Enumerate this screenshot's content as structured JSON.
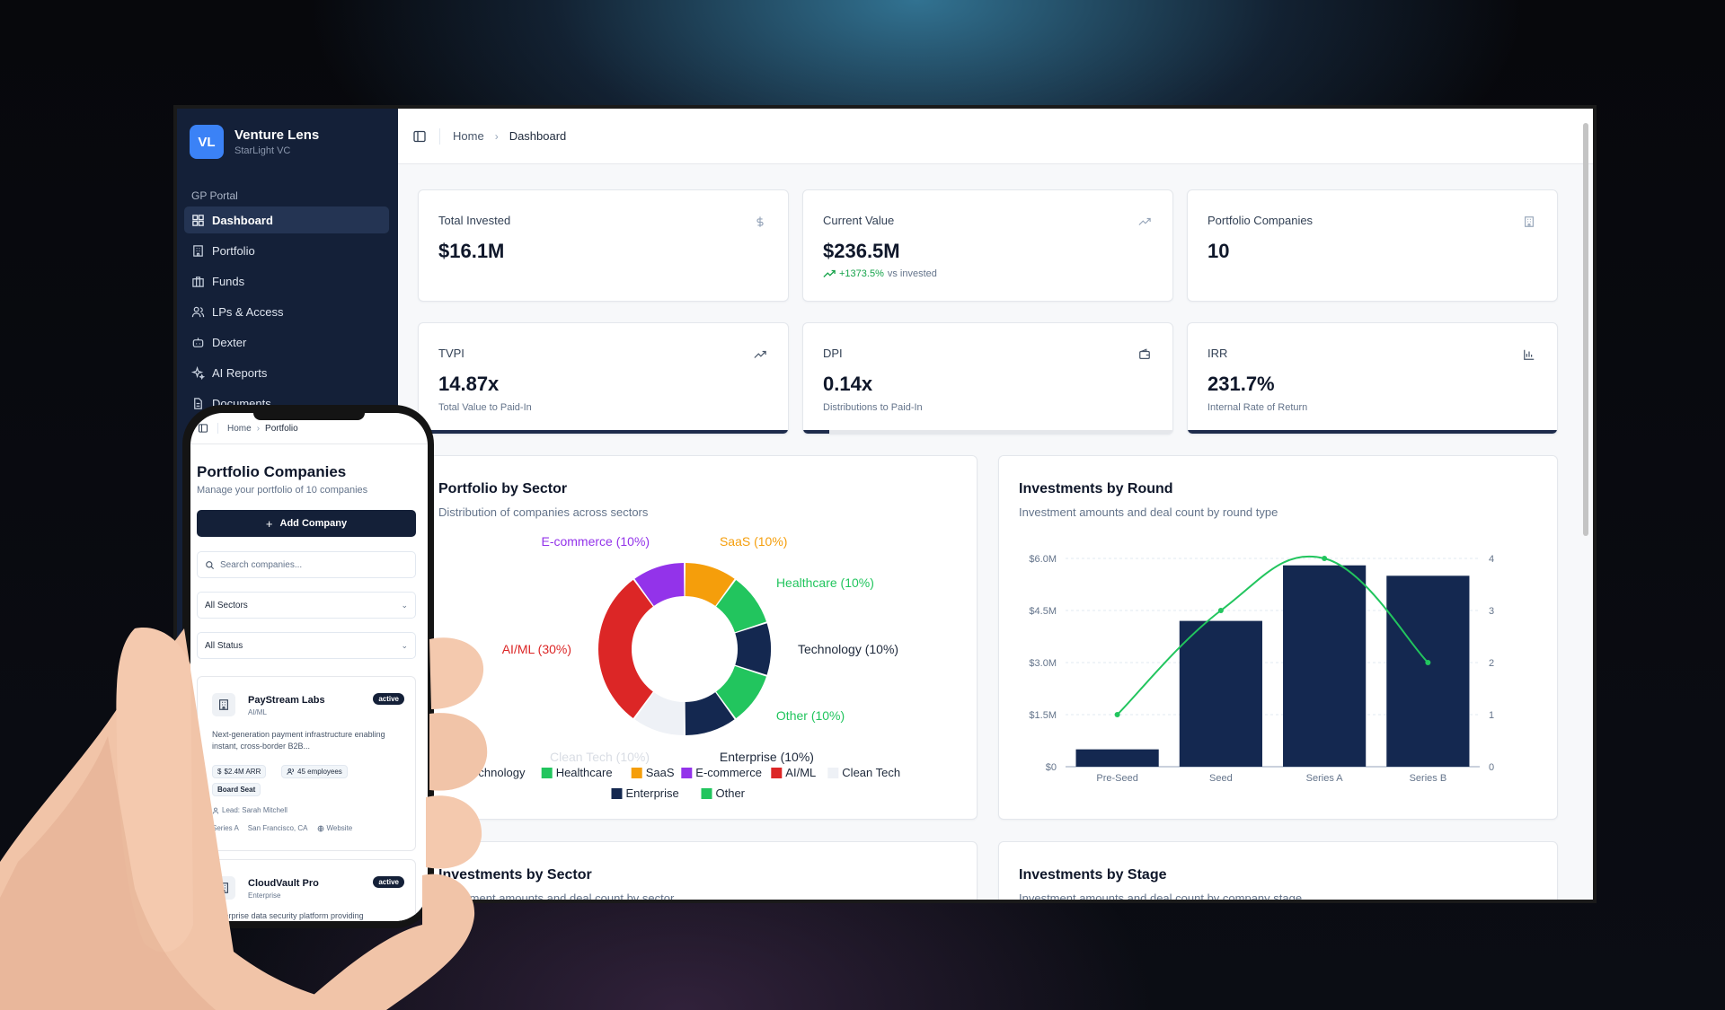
{
  "app": {
    "logo_initials": "VL",
    "name": "Venture Lens",
    "org": "StarLight VC"
  },
  "sidebar": {
    "section_label": "GP Portal",
    "items": [
      {
        "label": "Dashboard",
        "icon": "grid-icon",
        "active": true
      },
      {
        "label": "Portfolio",
        "icon": "building-icon"
      },
      {
        "label": "Funds",
        "icon": "briefcase-icon"
      },
      {
        "label": "LPs & Access",
        "icon": "users-icon"
      },
      {
        "label": "Dexter",
        "icon": "bot-icon"
      },
      {
        "label": "AI Reports",
        "icon": "sparkles-icon"
      },
      {
        "label": "Documents",
        "icon": "file-icon"
      }
    ]
  },
  "breadcrumb": {
    "home": "Home",
    "current": "Dashboard"
  },
  "kpis": [
    {
      "label": "Total Invested",
      "value": "$16.1M",
      "icon": "dollar-icon"
    },
    {
      "label": "Current Value",
      "value": "$236.5M",
      "delta": "+1373.5%",
      "delta_suffix": "vs invested",
      "icon": "trending-up-icon"
    },
    {
      "label": "Portfolio Companies",
      "value": "10",
      "icon": "building-icon"
    },
    {
      "label": "TVPI",
      "value": "14.87x",
      "sub": "Total Value to Paid-In",
      "icon": "trending-up-icon",
      "progress": 1.0
    },
    {
      "label": "DPI",
      "value": "0.14x",
      "sub": "Distributions to Paid-In",
      "icon": "wallet-icon",
      "progress": 0.07
    },
    {
      "label": "IRR",
      "value": "231.7%",
      "sub": "Internal Rate of Return",
      "icon": "bar-chart-icon",
      "progress": 1.0
    }
  ],
  "panels": {
    "sector": {
      "title": "Portfolio by Sector",
      "subtitle": "Distribution of companies across sectors"
    },
    "round": {
      "title": "Investments by Round",
      "subtitle": "Investment amounts and deal count by round type"
    },
    "inv_sector": {
      "title": "Investments by Sector",
      "subtitle": "Investment amounts and deal count by sector"
    },
    "inv_stage": {
      "title": "Investments by Stage",
      "subtitle": "Investment amounts and deal count by company stage"
    }
  },
  "chart_data": [
    {
      "type": "pie",
      "title": "Portfolio by Sector",
      "categories": [
        "SaaS",
        "Healthcare",
        "Technology",
        "Other",
        "Enterprise",
        "Clean Tech",
        "AI/ML",
        "E-commerce"
      ],
      "values": [
        10,
        10,
        10,
        10,
        10,
        10,
        30,
        10
      ],
      "labels": [
        "SaaS (10%)",
        "Healthcare (10%)",
        "Technology (10%)",
        "Other (10%)",
        "Enterprise (10%)",
        "Clean Tech (10%)",
        "AI/ML (30%)",
        "E-commerce (10%)"
      ],
      "colors": [
        "#f59e0b",
        "#22c55e",
        "#142850",
        "#22c55e",
        "#142850",
        "#eef1f6",
        "#dc2626",
        "#9333ea"
      ],
      "label_colors": [
        "#f59e0b",
        "#22c55e",
        "#1e293b",
        "#22c55e",
        "#1e293b",
        "#d9dde4",
        "#dc2626",
        "#9333ea"
      ],
      "legend": [
        {
          "name": "Technology",
          "color": "#142850"
        },
        {
          "name": "Healthcare",
          "color": "#22c55e"
        },
        {
          "name": "SaaS",
          "color": "#f59e0b"
        },
        {
          "name": "E-commerce",
          "color": "#9333ea"
        },
        {
          "name": "AI/ML",
          "color": "#dc2626"
        },
        {
          "name": "Clean Tech",
          "color": "#eef1f6"
        },
        {
          "name": "Enterprise",
          "color": "#142850"
        },
        {
          "name": "Other",
          "color": "#22c55e"
        }
      ],
      "legend_position": "bottom"
    },
    {
      "type": "bar",
      "title": "Investments by Round",
      "categories": [
        "Pre-Seed",
        "Seed",
        "Series A",
        "Series B"
      ],
      "series": [
        {
          "kind": "bar",
          "axis": "left",
          "color": "#142850",
          "values": [
            0.5,
            4.2,
            5.8,
            5.5
          ]
        },
        {
          "kind": "line",
          "axis": "right",
          "color": "#22c55e",
          "values": [
            1,
            3,
            4,
            2
          ]
        }
      ],
      "y_left": {
        "min": 0,
        "max": 6,
        "ticks": [
          "$0",
          "$1.5M",
          "$3.0M",
          "$4.5M",
          "$6.0M"
        ],
        "tick_values": [
          0,
          1.5,
          3,
          4.5,
          6
        ]
      },
      "y_right": {
        "min": 0,
        "max": 4,
        "ticks": [
          "0",
          "1",
          "2",
          "3",
          "4"
        ],
        "tick_values": [
          0,
          1,
          2,
          3,
          4
        ]
      },
      "grid": true
    }
  ],
  "mobile": {
    "breadcrumb": {
      "home": "Home",
      "current": "Portfolio"
    },
    "title": "Portfolio Companies",
    "subtitle": "Manage your portfolio of 10 companies",
    "add_label": "Add Company",
    "search_placeholder": "Search companies...",
    "sector_filter": "All Sectors",
    "status_filter": "All Status",
    "companies": [
      {
        "name": "PayStream Labs",
        "sector": "AI/ML",
        "status": "active",
        "description": "Next-generation payment infrastructure enabling instant, cross-border B2B...",
        "arr": "$2.4M ARR",
        "employees": "45 employees",
        "board": "Board Seat",
        "lead": "Lead: Sarah Mitchell",
        "round": "Series A",
        "location": "San Francisco, CA",
        "website": "Website"
      },
      {
        "name": "CloudVault Pro",
        "sector": "Enterprise",
        "status": "active",
        "description": "Enterprise data security platform providing"
      }
    ]
  }
}
